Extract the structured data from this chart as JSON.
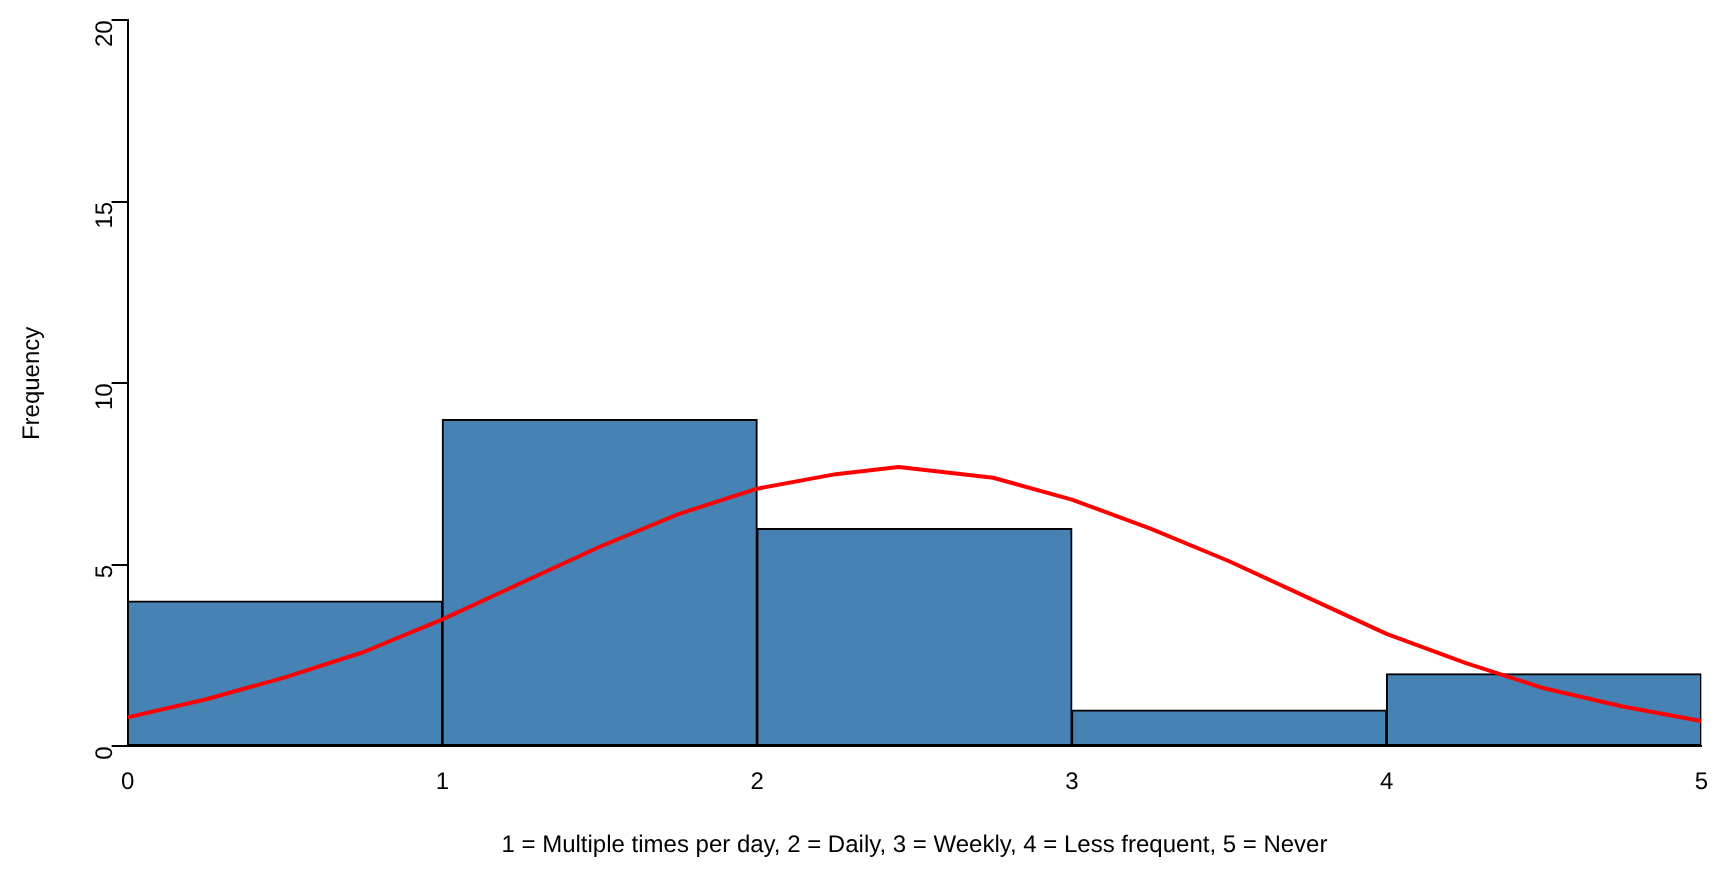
{
  "chart_data": {
    "type": "histogram",
    "xlabel": "1 = Multiple times per day, 2 = Daily, 3 = Weekly, 4 = Less frequent, 5 = Never",
    "ylabel": "Frequency",
    "bins": [
      0,
      1,
      2,
      3,
      4,
      5
    ],
    "values": [
      4,
      9,
      6,
      1,
      2
    ],
    "color": "#4682b4",
    "xlim": [
      0,
      5
    ],
    "xticks": [
      0,
      1,
      2,
      3,
      4,
      5
    ],
    "ylim": [
      0,
      20
    ],
    "yticks": [
      0,
      5,
      10,
      15,
      20
    ],
    "grid": false,
    "legend": false,
    "series": [
      {
        "type": "line",
        "color": "#ff0000",
        "x": [
          0,
          0.25,
          0.5,
          0.75,
          1,
          1.25,
          1.5,
          1.75,
          2,
          2.25,
          2.45,
          2.75,
          3,
          3.25,
          3.5,
          3.75,
          4,
          4.25,
          4.5,
          4.75,
          5
        ],
        "values": [
          0.8,
          1.3,
          1.9,
          2.6,
          3.5,
          4.5,
          5.5,
          6.4,
          7.1,
          7.5,
          7.7,
          7.4,
          6.8,
          6.0,
          5.1,
          4.1,
          3.1,
          2.3,
          1.6,
          1.1,
          0.7
        ]
      }
    ]
  }
}
